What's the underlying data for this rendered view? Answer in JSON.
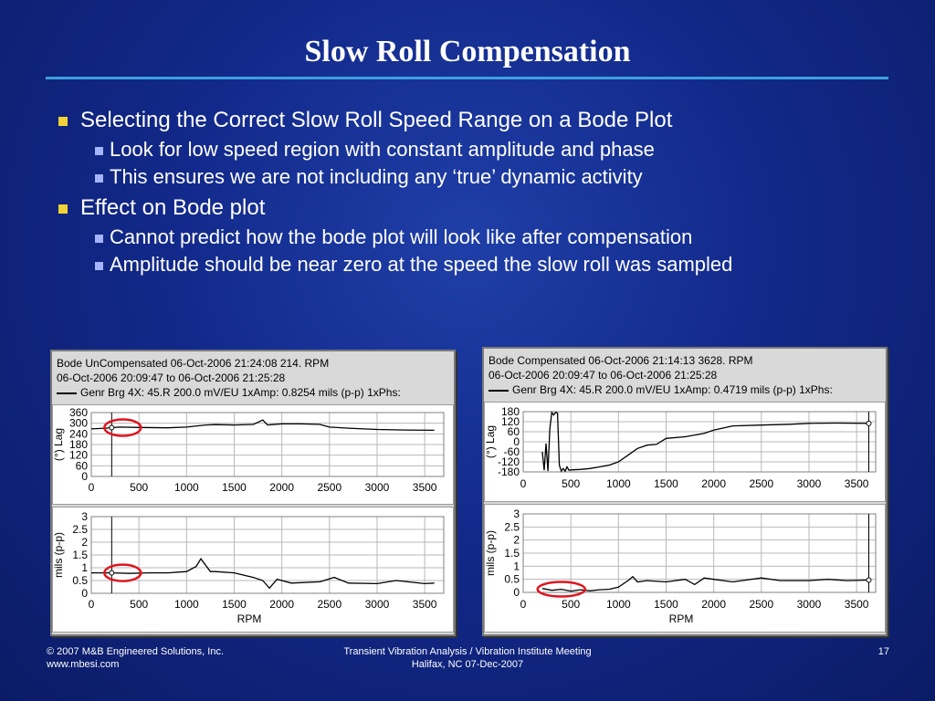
{
  "slide": {
    "title": "Slow Roll Compensation",
    "bullets": [
      {
        "text": "Selecting the Correct Slow Roll Speed Range on a Bode Plot",
        "sub": [
          "Look for low speed region with constant amplitude and phase",
          "This ensures we are not including any ‘true’ dynamic activity"
        ]
      },
      {
        "text": "Effect on Bode plot",
        "sub": [
          "Cannot predict how the bode plot will look like after compensation",
          "Amplitude should be near zero at the speed the slow roll was sampled"
        ]
      }
    ]
  },
  "left_panel": {
    "header1": "Bode   UnCompensated   06-Oct-2006 21:24:08   214. RPM",
    "header2": "06-Oct-2006 20:09:47  to  06-Oct-2006 21:25:28",
    "legend": "Genr Brg 4X:  45.R   200.0 mV/EU       1xAmp: 0.8254 mils (p-p)    1xPhs:",
    "phase_ylabel": "(°) Lag",
    "amp_ylabel": "mils (p-p)",
    "xlabel": ""
  },
  "right_panel": {
    "header1": "Bode   Compensated   06-Oct-2006 21:14:13   3628. RPM",
    "header2": "06-Oct-2006 20:09:47  to  06-Oct-2006 21:25:28",
    "legend": "Genr Brg 4X:  45.R   200.0 mV/EU       1xAmp: 0.4719 mils (p-p)    1xPhs:",
    "phase_ylabel": "(°) Lag",
    "amp_ylabel": "mils (p-p)",
    "xlabel": "RPM"
  },
  "amp_xlabel": "RPM",
  "chart_data": [
    {
      "type": "line",
      "name": "left-phase",
      "x_ticks": [
        0,
        500,
        1000,
        1500,
        2000,
        2500,
        3000,
        3500
      ],
      "y_ticks": [
        0,
        60,
        120,
        180,
        240,
        300,
        360
      ],
      "y_tick_labels": [
        "0",
        "60",
        "120",
        "180",
        "240",
        "300",
        "360"
      ],
      "xlim": [
        0,
        3700
      ],
      "ylim": [
        0,
        360
      ],
      "cursor_x": 214,
      "marker": [
        214,
        275
      ],
      "x": [
        0,
        150,
        214,
        300,
        500,
        800,
        1000,
        1200,
        1300,
        1500,
        1700,
        1800,
        1850,
        1900,
        2000,
        2200,
        2400,
        2500,
        2700,
        3000,
        3300,
        3600
      ],
      "y": [
        268,
        272,
        275,
        278,
        276,
        274,
        278,
        290,
        292,
        290,
        293,
        318,
        290,
        292,
        296,
        296,
        293,
        278,
        272,
        265,
        262,
        260
      ]
    },
    {
      "type": "line",
      "name": "left-amplitude",
      "x_ticks": [
        0,
        500,
        1000,
        1500,
        2000,
        2500,
        3000,
        3500
      ],
      "y_ticks": [
        0,
        0.5,
        1,
        1.5,
        2,
        2.5,
        3
      ],
      "y_tick_labels": [
        "0",
        "0.5",
        "1",
        "1.5",
        "2",
        "2.5",
        "3"
      ],
      "xlim": [
        0,
        3700
      ],
      "ylim": [
        0,
        3
      ],
      "cursor_x": 214,
      "marker": [
        214,
        0.8
      ],
      "x": [
        0,
        100,
        214,
        400,
        600,
        800,
        1000,
        1100,
        1150,
        1200,
        1250,
        1300,
        1500,
        1700,
        1800,
        1870,
        1950,
        2100,
        2400,
        2550,
        2700,
        3000,
        3200,
        3500,
        3600
      ],
      "y": [
        0.8,
        0.8,
        0.8,
        0.78,
        0.8,
        0.8,
        0.85,
        1.05,
        1.35,
        1.1,
        0.85,
        0.85,
        0.8,
        0.62,
        0.5,
        0.2,
        0.55,
        0.4,
        0.45,
        0.62,
        0.4,
        0.38,
        0.5,
        0.38,
        0.4
      ]
    },
    {
      "type": "line",
      "name": "right-phase",
      "x_ticks": [
        0,
        500,
        1000,
        1500,
        2000,
        2500,
        3000,
        3500
      ],
      "y_ticks": [
        -180,
        -120,
        -60,
        0,
        60,
        120,
        180
      ],
      "y_tick_labels": [
        "-180",
        "-120",
        "-60",
        "0",
        "60",
        "120",
        "180"
      ],
      "xlim": [
        0,
        3700
      ],
      "ylim": [
        -180,
        180
      ],
      "cursor_x": 3628,
      "marker": [
        3628,
        110
      ],
      "x": [
        200,
        220,
        240,
        260,
        280,
        300,
        320,
        340,
        360,
        380,
        400,
        420,
        440,
        460,
        480,
        500,
        600,
        700,
        800,
        900,
        1000,
        1100,
        1200,
        1300,
        1400,
        1500,
        1700,
        1900,
        2000,
        2200,
        2500,
        2800,
        3000,
        3300,
        3628
      ],
      "y": [
        -60,
        -170,
        -10,
        -175,
        80,
        175,
        160,
        176,
        170,
        -140,
        -175,
        -160,
        -176,
        -150,
        -170,
        -168,
        -165,
        -160,
        -150,
        -140,
        -120,
        -80,
        -40,
        -20,
        -15,
        20,
        30,
        50,
        70,
        95,
        100,
        105,
        110,
        112,
        110
      ]
    },
    {
      "type": "line",
      "name": "right-amplitude",
      "x_ticks": [
        0,
        500,
        1000,
        1500,
        2000,
        2500,
        3000,
        3500
      ],
      "y_ticks": [
        0,
        0.5,
        1,
        1.5,
        2,
        2.5,
        3
      ],
      "y_tick_labels": [
        "0",
        "0.5",
        "1",
        "1.5",
        "2",
        "2.5",
        "3"
      ],
      "xlim": [
        0,
        3700
      ],
      "ylim": [
        0,
        3
      ],
      "cursor_x": 3628,
      "marker": [
        3628,
        0.47
      ],
      "x": [
        200,
        300,
        400,
        500,
        600,
        700,
        800,
        900,
        1000,
        1100,
        1150,
        1200,
        1300,
        1500,
        1700,
        1800,
        1900,
        2000,
        2200,
        2500,
        2700,
        3000,
        3200,
        3400,
        3628
      ],
      "y": [
        0.15,
        0.08,
        0.12,
        0.05,
        0.1,
        0.06,
        0.1,
        0.12,
        0.2,
        0.45,
        0.6,
        0.4,
        0.45,
        0.4,
        0.5,
        0.3,
        0.55,
        0.5,
        0.4,
        0.55,
        0.45,
        0.45,
        0.5,
        0.45,
        0.47
      ]
    }
  ],
  "footer": {
    "copyright": "© 2007 M&B Engineered Solutions, Inc.",
    "website": "www.mbesi.com",
    "event": "Transient Vibration Analysis / Vibration Institute Meeting",
    "location": "Halifax, NC    07-Dec-2007",
    "page": "17"
  },
  "colors": {
    "bullet1": "#f2d335",
    "bullet2": "#a4b4ff",
    "rule": "#3d9fe0",
    "highlight": "#e0141e"
  }
}
